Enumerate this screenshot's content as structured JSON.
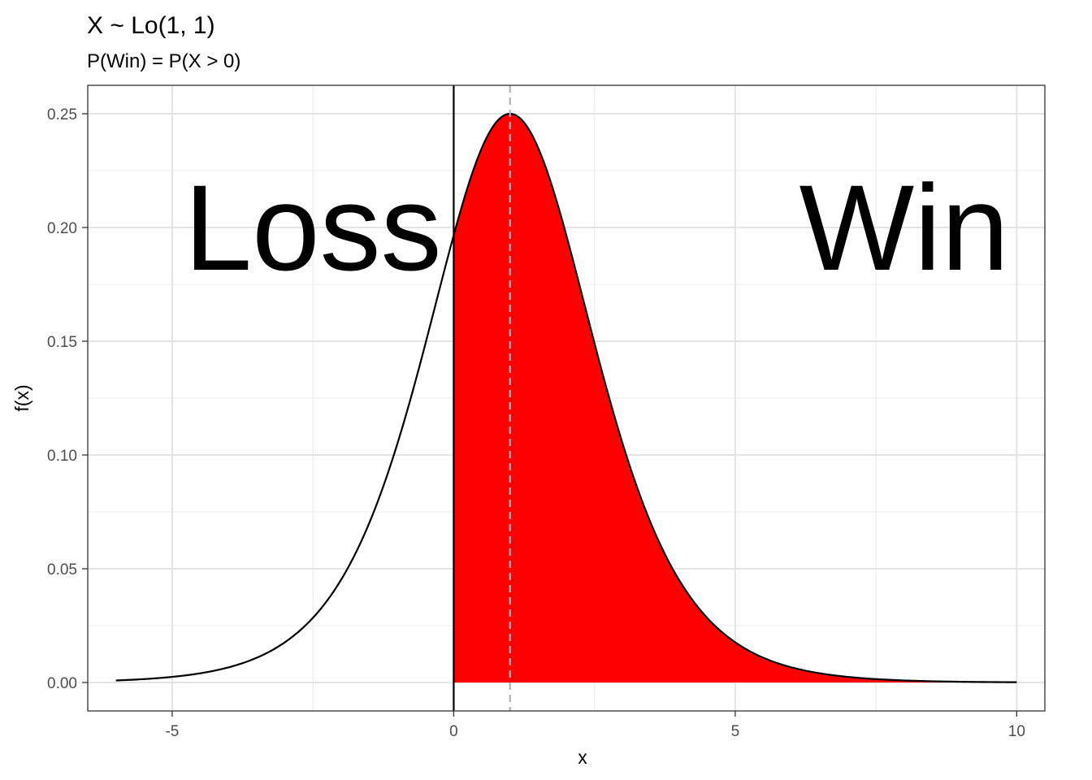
{
  "chart_data": {
    "type": "area",
    "title": "X ~ Lo(1, 1)",
    "subtitle": "P(Win) = P(X > 0)",
    "xlabel": "x",
    "ylabel": "f(x)",
    "xlim": [
      -6.5,
      10.5
    ],
    "ylim": [
      -0.0125,
      0.2625
    ],
    "x_ticks": [
      -5,
      0,
      5,
      10
    ],
    "x_tick_labels": [
      "-5",
      "0",
      "5",
      "10"
    ],
    "y_ticks": [
      0,
      0.05,
      0.1,
      0.15,
      0.2,
      0.25
    ],
    "y_tick_labels": [
      "0.00",
      "0.05",
      "0.10",
      "0.15",
      "0.20",
      "0.25"
    ],
    "grid": true,
    "distribution": {
      "name": "logistic",
      "location": 1,
      "scale": 1
    },
    "x_range": [
      -6,
      10
    ],
    "series": [
      {
        "x": [
          -6,
          -5,
          -4,
          -3,
          -2,
          -1,
          0,
          0.5,
          1,
          1.5,
          2,
          3,
          4,
          5,
          6,
          7,
          8,
          9,
          10
        ],
        "values": [
          0.0009,
          0.0025,
          0.0066,
          0.0177,
          0.0452,
          0.105,
          0.1966,
          0.235,
          0.25,
          0.235,
          0.1966,
          0.105,
          0.0452,
          0.0177,
          0.0066,
          0.0025,
          0.0009,
          0.0003,
          0.0001
        ]
      }
    ],
    "shaded_region": {
      "from": 0,
      "to": 10,
      "color": "#ff0000"
    },
    "vline_solid": 0,
    "vline_dashed": 1,
    "annotations": [
      {
        "text": "Loss",
        "x": -2.5,
        "y": 0.2
      },
      {
        "text": "Win",
        "x": 8,
        "y": 0.2
      }
    ]
  }
}
